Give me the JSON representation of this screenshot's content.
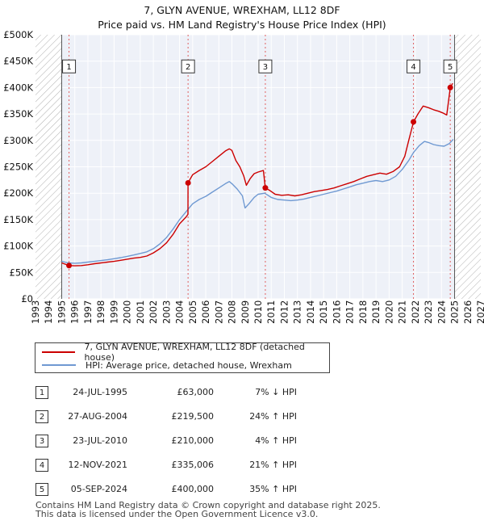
{
  "chart_data": {
    "type": "line",
    "title": "7, GLYN AVENUE, WREXHAM, LL12 8DF",
    "subtitle": "Price paid vs. HM Land Registry's House Price Index (HPI)",
    "xlim": [
      1993,
      2027
    ],
    "ylim": [
      0,
      500000
    ],
    "x_ticks": [
      "1993",
      "1994",
      "1995",
      "1996",
      "1997",
      "1998",
      "1999",
      "2000",
      "2001",
      "2002",
      "2003",
      "2004",
      "2005",
      "2006",
      "2007",
      "2008",
      "2009",
      "2010",
      "2011",
      "2012",
      "2013",
      "2014",
      "2015",
      "2016",
      "2017",
      "2018",
      "2019",
      "2020",
      "2021",
      "2022",
      "2023",
      "2024",
      "2025",
      "2026",
      "2027"
    ],
    "y_ticks": [
      {
        "value": 0,
        "label": "£0"
      },
      {
        "value": 50000,
        "label": "£50K"
      },
      {
        "value": 100000,
        "label": "£100K"
      },
      {
        "value": 150000,
        "label": "£150K"
      },
      {
        "value": 200000,
        "label": "£200K"
      },
      {
        "value": 250000,
        "label": "£250K"
      },
      {
        "value": 300000,
        "label": "£300K"
      },
      {
        "value": 350000,
        "label": "£350K"
      },
      {
        "value": 400000,
        "label": "£400K"
      },
      {
        "value": 450000,
        "label": "£450K"
      },
      {
        "value": 500000,
        "label": "£500K"
      }
    ],
    "hatched_regions": [
      [
        1993,
        1995.0
      ],
      [
        2025.0,
        2027
      ]
    ],
    "series": [
      {
        "name": "7, GLYN AVENUE, WREXHAM, LL12 8DF (detached house)",
        "color": "#cc0000",
        "points": [
          [
            1995.0,
            68000
          ],
          [
            1995.56,
            63000
          ],
          [
            1996.0,
            62500
          ],
          [
            1996.5,
            63000
          ],
          [
            1997.0,
            64500
          ],
          [
            1997.5,
            66500
          ],
          [
            1998.0,
            68000
          ],
          [
            1998.5,
            69500
          ],
          [
            1999.0,
            71000
          ],
          [
            1999.5,
            73000
          ],
          [
            2000.0,
            75000
          ],
          [
            2000.5,
            77000
          ],
          [
            2001.0,
            78500
          ],
          [
            2001.5,
            81000
          ],
          [
            2002.0,
            87000
          ],
          [
            2002.5,
            95000
          ],
          [
            2003.0,
            106000
          ],
          [
            2003.5,
            122000
          ],
          [
            2004.0,
            142000
          ],
          [
            2004.5,
            155000
          ],
          [
            2004.64,
            160000
          ],
          [
            2004.65,
            219500
          ],
          [
            2005.0,
            235000
          ],
          [
            2005.5,
            243000
          ],
          [
            2006.0,
            250000
          ],
          [
            2006.5,
            260000
          ],
          [
            2007.0,
            270000
          ],
          [
            2007.5,
            280000
          ],
          [
            2007.8,
            284000
          ],
          [
            2008.0,
            281000
          ],
          [
            2008.3,
            262000
          ],
          [
            2008.6,
            250000
          ],
          [
            2008.9,
            233000
          ],
          [
            2009.1,
            215000
          ],
          [
            2009.4,
            228000
          ],
          [
            2009.7,
            237000
          ],
          [
            2010.0,
            240000
          ],
          [
            2010.4,
            243000
          ],
          [
            2010.55,
            210000
          ],
          [
            2010.9,
            205000
          ],
          [
            2011.3,
            198000
          ],
          [
            2011.8,
            196000
          ],
          [
            2012.3,
            197000
          ],
          [
            2012.8,
            195000
          ],
          [
            2013.3,
            197000
          ],
          [
            2013.8,
            200000
          ],
          [
            2014.3,
            203000
          ],
          [
            2014.8,
            205000
          ],
          [
            2015.3,
            207000
          ],
          [
            2015.8,
            210000
          ],
          [
            2016.3,
            214000
          ],
          [
            2016.8,
            218000
          ],
          [
            2017.3,
            222000
          ],
          [
            2017.8,
            227000
          ],
          [
            2018.3,
            232000
          ],
          [
            2018.8,
            235000
          ],
          [
            2019.3,
            238000
          ],
          [
            2019.8,
            236000
          ],
          [
            2020.3,
            241000
          ],
          [
            2020.8,
            250000
          ],
          [
            2021.2,
            270000
          ],
          [
            2021.5,
            300000
          ],
          [
            2021.86,
            335006
          ],
          [
            2022.2,
            350000
          ],
          [
            2022.6,
            365000
          ],
          [
            2023.0,
            362000
          ],
          [
            2023.4,
            358000
          ],
          [
            2023.8,
            355000
          ],
          [
            2024.1,
            352000
          ],
          [
            2024.4,
            348000
          ],
          [
            2024.67,
            400000
          ],
          [
            2024.85,
            408000
          ]
        ]
      },
      {
        "name": "HPI: Average price, detached house, Wrexham",
        "color": "#6f99d2",
        "points": [
          [
            1995.0,
            71000
          ],
          [
            1995.5,
            68000
          ],
          [
            1996.0,
            67500
          ],
          [
            1996.5,
            68000
          ],
          [
            1997.0,
            69500
          ],
          [
            1997.5,
            71000
          ],
          [
            1998.0,
            72500
          ],
          [
            1998.5,
            74000
          ],
          [
            1999.0,
            76000
          ],
          [
            1999.5,
            78000
          ],
          [
            2000.0,
            80500
          ],
          [
            2000.5,
            83000
          ],
          [
            2001.0,
            86000
          ],
          [
            2001.5,
            89000
          ],
          [
            2002.0,
            95000
          ],
          [
            2002.5,
            104000
          ],
          [
            2003.0,
            116000
          ],
          [
            2003.5,
            132000
          ],
          [
            2004.0,
            150000
          ],
          [
            2004.5,
            165000
          ],
          [
            2005.0,
            180000
          ],
          [
            2005.5,
            188000
          ],
          [
            2006.0,
            194000
          ],
          [
            2006.5,
            202000
          ],
          [
            2007.0,
            210000
          ],
          [
            2007.5,
            218000
          ],
          [
            2007.8,
            222000
          ],
          [
            2008.0,
            218000
          ],
          [
            2008.4,
            208000
          ],
          [
            2008.8,
            195000
          ],
          [
            2009.0,
            172000
          ],
          [
            2009.3,
            180000
          ],
          [
            2009.7,
            192000
          ],
          [
            2010.0,
            198000
          ],
          [
            2010.5,
            200000
          ],
          [
            2011.0,
            192000
          ],
          [
            2011.5,
            188000
          ],
          [
            2012.0,
            187000
          ],
          [
            2012.5,
            186000
          ],
          [
            2013.0,
            187000
          ],
          [
            2013.5,
            189000
          ],
          [
            2014.0,
            192000
          ],
          [
            2014.5,
            195000
          ],
          [
            2015.0,
            198000
          ],
          [
            2015.5,
            201000
          ],
          [
            2016.0,
            204000
          ],
          [
            2016.5,
            208000
          ],
          [
            2017.0,
            212000
          ],
          [
            2017.5,
            216000
          ],
          [
            2018.0,
            219000
          ],
          [
            2018.5,
            222000
          ],
          [
            2019.0,
            224000
          ],
          [
            2019.5,
            222000
          ],
          [
            2020.0,
            225000
          ],
          [
            2020.5,
            232000
          ],
          [
            2021.0,
            245000
          ],
          [
            2021.5,
            262000
          ],
          [
            2021.86,
            277000
          ],
          [
            2022.3,
            290000
          ],
          [
            2022.7,
            298000
          ],
          [
            2023.0,
            296000
          ],
          [
            2023.4,
            292000
          ],
          [
            2023.8,
            290000
          ],
          [
            2024.2,
            289000
          ],
          [
            2024.6,
            294000
          ],
          [
            2024.9,
            302000
          ]
        ]
      }
    ],
    "markers": [
      {
        "label": "1",
        "x": 1995.56,
        "y": 63000
      },
      {
        "label": "2",
        "x": 2004.65,
        "y": 219500
      },
      {
        "label": "3",
        "x": 2010.55,
        "y": 210000
      },
      {
        "label": "4",
        "x": 2021.86,
        "y": 335006
      },
      {
        "label": "5",
        "x": 2024.67,
        "y": 400000
      }
    ],
    "marker_box_value": 440000
  },
  "legend": [
    {
      "label": "7, GLYN AVENUE, WREXHAM, LL12 8DF (detached house)",
      "color": "#cc0000"
    },
    {
      "label": "HPI: Average price, detached house, Wrexham",
      "color": "#6f99d2"
    }
  ],
  "sales": [
    {
      "num": "1",
      "date": "24-JUL-1995",
      "price": "£63,000",
      "hpi": "7% ↓ HPI"
    },
    {
      "num": "2",
      "date": "27-AUG-2004",
      "price": "£219,500",
      "hpi": "24% ↑ HPI"
    },
    {
      "num": "3",
      "date": "23-JUL-2010",
      "price": "£210,000",
      "hpi": "4% ↑ HPI"
    },
    {
      "num": "4",
      "date": "12-NOV-2021",
      "price": "£335,006",
      "hpi": "21% ↑ HPI"
    },
    {
      "num": "5",
      "date": "05-SEP-2024",
      "price": "£400,000",
      "hpi": "35% ↑ HPI"
    }
  ],
  "footer": {
    "line1": "Contains HM Land Registry data © Crown copyright and database right 2025.",
    "line2": "This data is licensed under the Open Government Licence v3.0."
  }
}
